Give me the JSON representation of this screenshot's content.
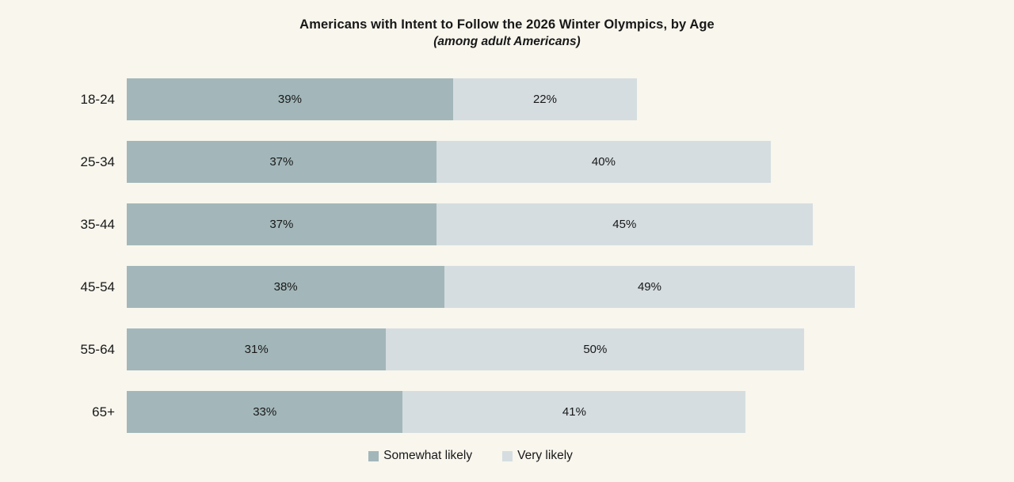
{
  "title": "Americans with Intent to Follow the 2026 Winter Olympics, by Age",
  "subtitle": "(among adult Americans)",
  "colors": {
    "background": "#f8f6ed",
    "somewhat_likely": "#a3b7ba",
    "very_likely": "#d5dde0",
    "text": "#181818"
  },
  "legend": [
    {
      "name": "Somewhat likely",
      "color": "#a3b7ba"
    },
    {
      "name": "Very likely",
      "color": "#d5dde0"
    }
  ],
  "chart_data": {
    "type": "bar",
    "orientation": "horizontal",
    "stacked": true,
    "title": "Americans with Intent to Follow the 2026 Winter Olympics, by Age",
    "subtitle": "(among adult Americans)",
    "categories": [
      "18-24",
      "25-34",
      "35-44",
      "45-54",
      "55-64",
      "65+"
    ],
    "series": [
      {
        "name": "Somewhat likely",
        "color": "#a3b7ba",
        "values": [
          39,
          37,
          37,
          38,
          31,
          33
        ]
      },
      {
        "name": "Very likely",
        "color": "#d5dde0",
        "values": [
          22,
          40,
          45,
          49,
          50,
          41
        ]
      }
    ],
    "value_format": "percent",
    "value_labels": "inside-center",
    "xlim": [
      0,
      100
    ],
    "grid": false,
    "legend_position": "bottom"
  }
}
